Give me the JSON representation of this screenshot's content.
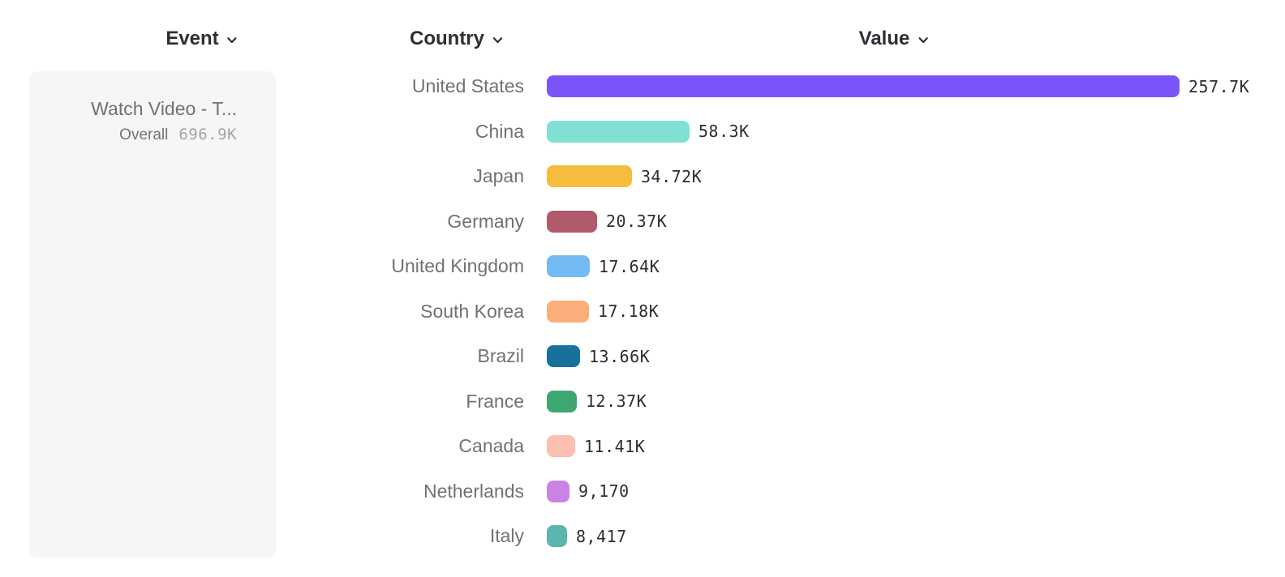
{
  "headers": {
    "event": "Event",
    "country": "Country",
    "value": "Value"
  },
  "event_card": {
    "title": "Watch Video - T...",
    "metric_label": "Overall",
    "metric_value": "696.9K"
  },
  "chart_data": {
    "type": "bar",
    "orientation": "horizontal",
    "xlabel": "Value",
    "ylabel": "Country",
    "x_range": [
      0,
      257700
    ],
    "grid": false,
    "legend": false,
    "categories": [
      "United States",
      "China",
      "Japan",
      "Germany",
      "United Kingdom",
      "South Korea",
      "Brazil",
      "France",
      "Canada",
      "Netherlands",
      "Italy"
    ],
    "values": [
      257700,
      58300,
      34720,
      20370,
      17640,
      17180,
      13660,
      12370,
      11410,
      9170,
      8417
    ],
    "value_labels": [
      "257.7K",
      "58.3K",
      "34.72K",
      "20.37K",
      "17.64K",
      "17.18K",
      "13.66K",
      "12.37K",
      "11.41K",
      "9,170",
      "8,417"
    ],
    "bar_colors": [
      "#7b55f9",
      "#7fe0d3",
      "#f5bc3e",
      "#b05a6c",
      "#74bbf3",
      "#fbae79",
      "#17719b",
      "#3ea671",
      "#fcbfb0",
      "#c983e4",
      "#5cb5ae"
    ]
  },
  "ui_colors": {
    "header_text": "#2c2f33",
    "country_label": "#6f7275",
    "value_label": "#2b2e31",
    "card_background": "#f6f6f7",
    "card_title": "#6e7173",
    "card_metric_value": "#a2a4a6"
  }
}
